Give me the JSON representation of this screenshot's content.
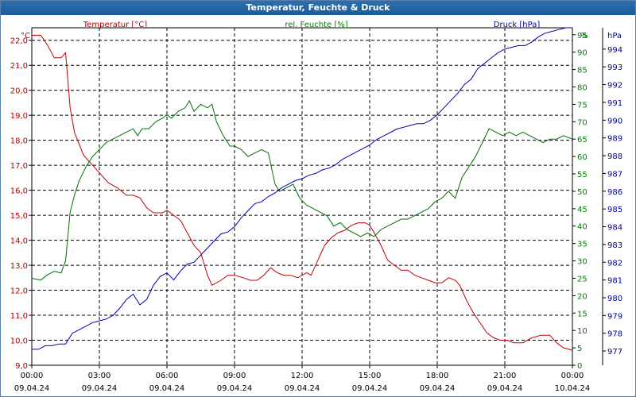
{
  "window": {
    "title": "Temperatur, Feuchte & Druck"
  },
  "chart_data": {
    "type": "line",
    "title": "Temperatur, Feuchte & Druck",
    "x_range": [
      "09.04.24 00:00",
      "10.04.24 00:00"
    ],
    "x_ticks": [
      {
        "time": "00:00",
        "date": "09.04.24",
        "hour": 0
      },
      {
        "time": "03:00",
        "date": "09.04.24",
        "hour": 3
      },
      {
        "time": "06:00",
        "date": "09.04.24",
        "hour": 6
      },
      {
        "time": "09:00",
        "date": "09.04.24",
        "hour": 9
      },
      {
        "time": "12:00",
        "date": "09.04.24",
        "hour": 12
      },
      {
        "time": "15:00",
        "date": "09.04.24",
        "hour": 15
      },
      {
        "time": "18:00",
        "date": "09.04.24",
        "hour": 18
      },
      {
        "time": "21:00",
        "date": "09.04.24",
        "hour": 21
      },
      {
        "time": "00:00",
        "date": "10.04.24",
        "hour": 24
      }
    ],
    "axes": {
      "temperature": {
        "label": "Temperatur [°C]",
        "unit": "°C",
        "ylim": [
          9.0,
          22.5
        ],
        "ticks": [
          "9,0",
          "10,0",
          "11,0",
          "12,0",
          "13,0",
          "14,0",
          "15,0",
          "16,0",
          "17,0",
          "18,0",
          "19,0",
          "20,0",
          "21,0",
          "22,0"
        ],
        "color": "#b00000"
      },
      "humidity": {
        "label": "rel. Feuchte [%]",
        "unit": "%",
        "ylim": [
          0,
          97
        ],
        "ticks": [
          "0",
          "5",
          "10",
          "15",
          "20",
          "25",
          "30",
          "35",
          "40",
          "45",
          "50",
          "55",
          "60",
          "65",
          "70",
          "75",
          "80",
          "85",
          "90",
          "95"
        ],
        "color": "#008000"
      },
      "pressure": {
        "label": "Druck [hPa]",
        "unit": "hPa",
        "ylim": [
          976.2,
          995.2
        ],
        "ticks": [
          "977",
          "978",
          "979",
          "980",
          "981",
          "982",
          "983",
          "984",
          "985",
          "986",
          "987",
          "988",
          "989",
          "990",
          "991",
          "992",
          "993",
          "994"
        ],
        "color": "#0000a0"
      }
    },
    "grid": true,
    "series": [
      {
        "name": "Temperatur [°C]",
        "axis": "temperature",
        "color": "#c00000",
        "x": [
          0,
          0.4,
          0.7,
          1.0,
          1.3,
          1.5,
          1.7,
          1.9,
          2.3,
          2.7,
          3.0,
          3.4,
          3.8,
          4.2,
          4.5,
          4.8,
          5.1,
          5.4,
          5.8,
          6.0,
          6.3,
          6.6,
          6.9,
          7.2,
          7.5,
          7.8,
          8.0,
          8.4,
          8.7,
          9.0,
          9.4,
          9.7,
          10.0,
          10.3,
          10.6,
          10.9,
          11.2,
          11.5,
          11.8,
          12.0,
          12.2,
          12.4,
          12.7,
          13.0,
          13.3,
          13.6,
          13.9,
          14.2,
          14.5,
          14.8,
          15.0,
          15.2,
          15.5,
          15.8,
          16.1,
          16.4,
          16.7,
          17.0,
          17.3,
          17.6,
          17.9,
          18.2,
          18.5,
          18.8,
          19.0,
          19.3,
          19.6,
          19.9,
          20.2,
          20.5,
          20.8,
          21.1,
          21.4,
          21.8,
          22.2,
          22.6,
          23.0,
          23.3,
          23.6,
          24.0
        ],
        "y": [
          22.2,
          22.2,
          21.8,
          21.3,
          21.3,
          21.5,
          19.3,
          18.3,
          17.4,
          17.0,
          16.7,
          16.3,
          16.1,
          15.8,
          15.8,
          15.7,
          15.3,
          15.1,
          15.1,
          15.2,
          15.0,
          14.8,
          14.3,
          13.8,
          13.5,
          12.6,
          12.2,
          12.4,
          12.6,
          12.6,
          12.5,
          12.4,
          12.4,
          12.6,
          12.9,
          12.7,
          12.6,
          12.6,
          12.5,
          12.6,
          12.7,
          12.6,
          13.2,
          13.8,
          14.1,
          14.3,
          14.4,
          14.6,
          14.7,
          14.7,
          14.6,
          14.3,
          13.8,
          13.2,
          13.0,
          12.8,
          12.8,
          12.6,
          12.5,
          12.4,
          12.3,
          12.3,
          12.5,
          12.4,
          12.2,
          11.6,
          11.1,
          10.7,
          10.3,
          10.1,
          10.0,
          10.0,
          9.9,
          9.9,
          10.1,
          10.2,
          10.2,
          9.9,
          9.7,
          9.6
        ]
      },
      {
        "name": "rel. Feuchte [%]",
        "axis": "humidity",
        "color": "#007000",
        "x": [
          0,
          0.4,
          0.7,
          1.0,
          1.3,
          1.5,
          1.7,
          1.9,
          2.1,
          2.4,
          2.7,
          3.0,
          3.3,
          3.6,
          3.9,
          4.2,
          4.5,
          4.7,
          4.9,
          5.2,
          5.5,
          5.8,
          6.0,
          6.2,
          6.5,
          6.8,
          7.0,
          7.2,
          7.5,
          7.8,
          8.0,
          8.2,
          8.5,
          8.8,
          9.0,
          9.3,
          9.6,
          9.9,
          10.2,
          10.5,
          10.8,
          11.0,
          11.3,
          11.6,
          11.9,
          12.2,
          12.5,
          12.8,
          13.1,
          13.4,
          13.7,
          14.0,
          14.3,
          14.6,
          14.9,
          15.2,
          15.5,
          15.8,
          16.1,
          16.4,
          16.7,
          17.0,
          17.3,
          17.6,
          17.9,
          18.2,
          18.5,
          18.8,
          19.1,
          19.4,
          19.7,
          20.0,
          20.3,
          20.6,
          20.9,
          21.2,
          21.5,
          21.8,
          22.1,
          22.4,
          22.7,
          23.0,
          23.3,
          23.6,
          24.0
        ],
        "y": [
          25,
          24.5,
          26,
          27,
          26.5,
          30,
          44,
          49,
          53,
          57,
          60,
          62,
          64,
          65,
          66,
          67,
          68,
          66,
          68,
          68,
          70,
          71,
          72,
          71,
          73,
          74,
          76,
          73,
          75,
          74,
          75,
          70,
          66,
          63,
          63,
          62,
          60,
          61,
          62,
          61,
          52,
          50,
          51,
          52,
          48,
          46,
          45,
          44,
          43,
          40,
          41,
          39,
          38,
          37,
          38,
          37,
          39,
          40,
          41,
          42,
          42,
          43,
          44,
          45,
          47,
          48,
          50,
          48,
          54,
          57,
          60,
          64,
          68,
          67,
          66,
          67,
          66,
          67,
          66,
          65,
          64,
          65,
          65,
          66,
          65
        ]
      },
      {
        "name": "Druck [hPa]",
        "axis": "pressure",
        "color": "#0000b0",
        "x": [
          0,
          0.3,
          0.6,
          0.9,
          1.2,
          1.5,
          1.8,
          2.1,
          2.4,
          2.7,
          3.0,
          3.3,
          3.6,
          3.9,
          4.2,
          4.5,
          4.8,
          5.1,
          5.4,
          5.7,
          6.0,
          6.3,
          6.6,
          6.9,
          7.2,
          7.5,
          7.8,
          8.1,
          8.4,
          8.7,
          9.0,
          9.3,
          9.6,
          9.9,
          10.2,
          10.5,
          10.8,
          11.1,
          11.4,
          11.7,
          12.0,
          12.3,
          12.6,
          12.9,
          13.2,
          13.5,
          13.8,
          14.1,
          14.4,
          14.7,
          15.0,
          15.3,
          15.6,
          15.9,
          16.2,
          16.5,
          16.8,
          17.1,
          17.4,
          17.7,
          18.0,
          18.3,
          18.6,
          18.9,
          19.2,
          19.5,
          19.8,
          20.1,
          20.4,
          20.7,
          21.0,
          21.3,
          21.6,
          21.9,
          22.2,
          22.5,
          22.8,
          23.1,
          23.4,
          23.7,
          24.0
        ],
        "y": [
          977.1,
          977.1,
          977.3,
          977.3,
          977.4,
          977.4,
          978.0,
          978.2,
          978.4,
          978.6,
          978.7,
          978.8,
          979.0,
          979.4,
          979.9,
          980.2,
          979.6,
          979.9,
          980.7,
          981.2,
          981.4,
          981.0,
          981.5,
          981.9,
          982.0,
          982.4,
          982.8,
          983.2,
          983.6,
          983.7,
          984.0,
          984.5,
          984.9,
          985.3,
          985.4,
          985.7,
          985.9,
          986.2,
          986.4,
          986.6,
          986.7,
          986.9,
          987.0,
          987.2,
          987.3,
          987.5,
          987.8,
          988.0,
          988.2,
          988.4,
          988.6,
          988.9,
          989.1,
          989.3,
          989.5,
          989.6,
          989.7,
          989.8,
          989.8,
          990.0,
          990.3,
          990.7,
          991.1,
          991.5,
          992.0,
          992.3,
          992.9,
          993.2,
          993.5,
          993.8,
          994.0,
          994.1,
          994.2,
          994.2,
          994.4,
          994.7,
          994.9,
          995.0,
          995.1,
          995.2,
          995.2
        ]
      }
    ]
  }
}
